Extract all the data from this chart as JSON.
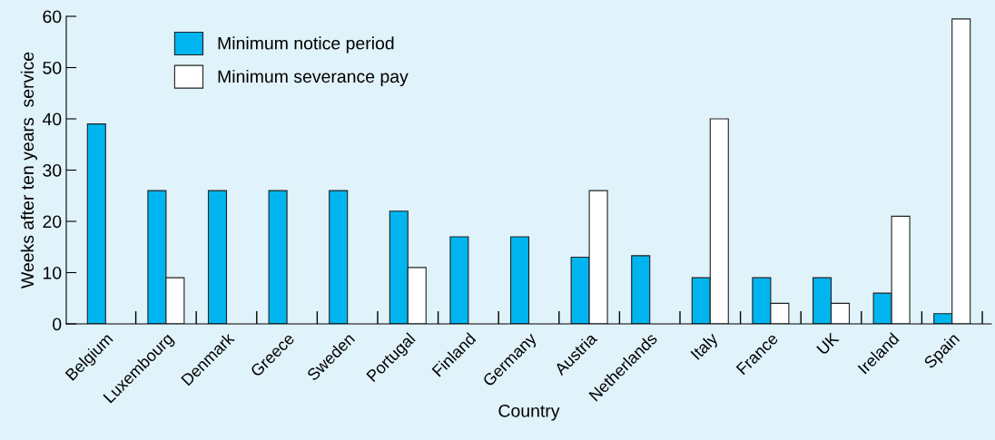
{
  "chart_data": {
    "type": "bar",
    "xlabel": "Country",
    "ylabel": "Weeks after ten years  service",
    "categories": [
      "Belgium",
      "Luxembourg",
      "Denmark",
      "Greece",
      "Sweden",
      "Portugal",
      "Finland",
      "Germany",
      "Austria",
      "Netherlands",
      "Italy",
      "France",
      "UK",
      "Ireland",
      "Spain"
    ],
    "series": [
      {
        "name": "Minimum notice period",
        "color": "#00b5ef",
        "values": [
          39,
          26,
          26,
          26,
          26,
          22,
          17,
          17,
          13,
          13.3,
          9,
          9,
          9,
          6,
          2
        ]
      },
      {
        "name": "Minimum severance pay",
        "color": "#ffffff",
        "values": [
          null,
          9,
          null,
          null,
          null,
          11,
          null,
          null,
          26,
          null,
          40,
          4,
          4,
          21,
          59.5
        ]
      }
    ],
    "ylim": [
      0,
      60
    ],
    "yticks": [
      0,
      10,
      20,
      30,
      40,
      50,
      60
    ],
    "legend": "top left",
    "grid": false
  }
}
